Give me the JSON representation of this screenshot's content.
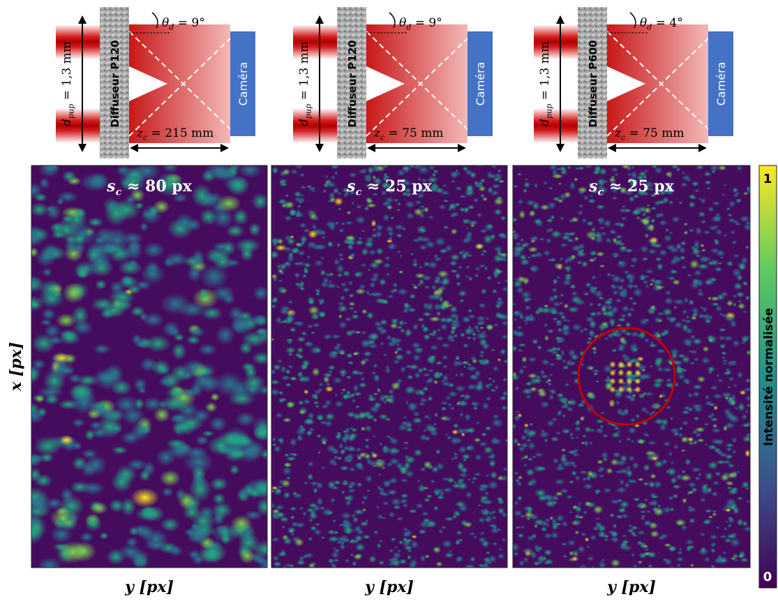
{
  "panels": [
    {
      "diagram": {
        "pupil": {
          "base": "d",
          "sub": "pup",
          "rest": " = 1,3 mm"
        },
        "diffuser": "Diffuseur P120",
        "angle": {
          "base": "θ",
          "sub": "d",
          "rest": " = 9°"
        },
        "camera": "Caméra",
        "distance": {
          "base": "z",
          "sub": "c",
          "rest": " = 215 mm"
        }
      },
      "speckle": {
        "base": "s",
        "sub": "c",
        "rest": " ≈ 80 px"
      },
      "x_label": "y [px]"
    },
    {
      "diagram": {
        "pupil": {
          "base": "d",
          "sub": "pup",
          "rest": " = 1,3 mm"
        },
        "diffuser": "Diffuseur P120",
        "angle": {
          "base": "θ",
          "sub": "d",
          "rest": " = 9°"
        },
        "camera": "Caméra",
        "distance": {
          "base": "z",
          "sub": "c",
          "rest": " = 75 mm"
        }
      },
      "speckle": {
        "base": "s",
        "sub": "c",
        "rest": " ≈ 25 px"
      },
      "x_label": "y [px]"
    },
    {
      "diagram": {
        "pupil": {
          "base": "d",
          "sub": "pup",
          "rest": " = 1,3 mm"
        },
        "diffuser": "Diffuseur P600",
        "angle": {
          "base": "θ",
          "sub": "d",
          "rest": " = 4°"
        },
        "camera": "Caméra",
        "distance": {
          "base": "z",
          "sub": "c",
          "rest": " = 75 mm"
        }
      },
      "speckle": {
        "base": "s",
        "sub": "c",
        "rest": " ≈ 25 px"
      },
      "x_label": "y [px]"
    }
  ],
  "y_label": "x [px]",
  "colorbar": {
    "label": "Intensité normalisée",
    "max": 1,
    "min": 0
  }
}
